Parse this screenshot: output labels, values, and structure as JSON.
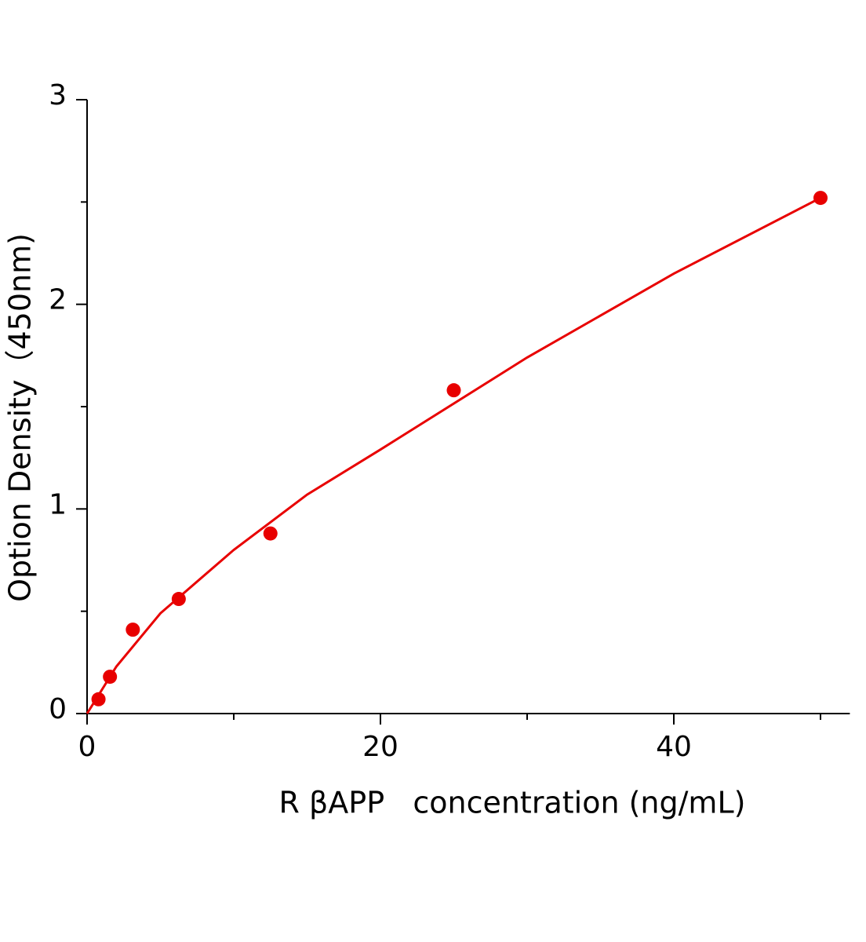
{
  "chart_data": {
    "type": "scatter",
    "x_label": "R βAPP   concentration (ng/mL)",
    "y_label": "Option Density（450nm)",
    "series": [
      {
        "color": "#e80000",
        "type": "scatter",
        "x": [
          0.78,
          1.56,
          3.12,
          6.25,
          12.5,
          25,
          50
        ],
        "values": [
          0.07,
          0.18,
          0.41,
          0.56,
          0.88,
          1.58,
          2.52
        ]
      },
      {
        "color": "#e80000",
        "type": "line",
        "x": [
          0,
          2,
          5,
          10,
          15,
          20,
          30,
          40,
          50
        ],
        "values": [
          0,
          0.23,
          0.49,
          0.8,
          1.07,
          1.29,
          1.74,
          2.15,
          2.52
        ]
      }
    ],
    "xlim": [
      0,
      52
    ],
    "ylim": [
      0,
      3
    ],
    "xticks": [
      0,
      20,
      40
    ],
    "yticks": [
      0,
      1,
      2,
      3
    ],
    "xminorticks": [
      10,
      30,
      50
    ],
    "yminorticks": [
      0.5,
      1.5,
      2.5
    ],
    "grid": false
  }
}
